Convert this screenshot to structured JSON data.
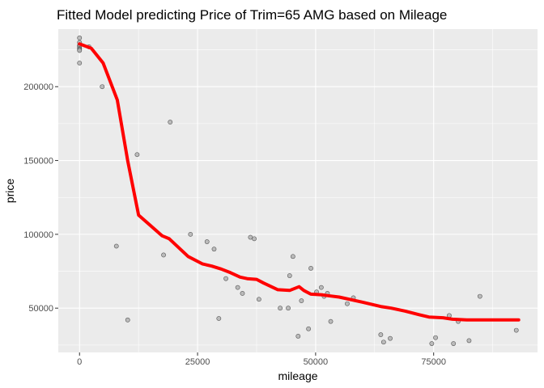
{
  "chart_data": {
    "type": "scatter",
    "title": "Fitted Model predicting Price of Trim=65 AMG based on Mileage",
    "xlabel": "mileage",
    "ylabel": "price",
    "xlim": [
      -4500,
      97000
    ],
    "ylim": [
      20000,
      239000
    ],
    "x_ticks": [
      0,
      25000,
      50000,
      75000
    ],
    "x_tick_labels": [
      "0",
      "25000",
      "50000",
      "75000"
    ],
    "y_ticks": [
      50000,
      100000,
      150000,
      200000
    ],
    "y_tick_labels": [
      "50000",
      "100000",
      "150000",
      "200000"
    ],
    "x_minor_ticks": [
      12500,
      37500,
      62500,
      87500
    ],
    "y_minor_ticks": [
      25000,
      75000,
      125000,
      175000,
      225000
    ],
    "grid": true,
    "legend": "none",
    "colors": {
      "panel_background": "#ebebeb",
      "grid_major": "#ffffff",
      "fit_line": "#ff0000",
      "point_fill": "#b3b3b3",
      "point_stroke": "#555555"
    },
    "series": [
      {
        "type": "scatter",
        "points": [
          [
            0,
            233000
          ],
          [
            0,
            230000
          ],
          [
            0,
            228000
          ],
          [
            0,
            227500
          ],
          [
            0,
            227000
          ],
          [
            0,
            226000
          ],
          [
            0,
            225500
          ],
          [
            0,
            225000
          ],
          [
            0,
            224500
          ],
          [
            0,
            216000
          ],
          [
            2000,
            227000
          ],
          [
            4800,
            200000
          ],
          [
            7800,
            92000
          ],
          [
            10200,
            42000
          ],
          [
            12200,
            154000
          ],
          [
            17800,
            86000
          ],
          [
            19200,
            176000
          ],
          [
            23500,
            100000
          ],
          [
            27000,
            95000
          ],
          [
            28500,
            90000
          ],
          [
            29500,
            43000
          ],
          [
            31000,
            70000
          ],
          [
            33500,
            64000
          ],
          [
            34500,
            60000
          ],
          [
            36200,
            98000
          ],
          [
            37000,
            97000
          ],
          [
            38000,
            56000
          ],
          [
            42500,
            50000
          ],
          [
            44200,
            50000
          ],
          [
            44500,
            72000
          ],
          [
            45200,
            85000
          ],
          [
            46300,
            31000
          ],
          [
            47000,
            55000
          ],
          [
            48500,
            36000
          ],
          [
            49000,
            77000
          ],
          [
            50200,
            61000
          ],
          [
            51200,
            64000
          ],
          [
            51800,
            58000
          ],
          [
            52500,
            60000
          ],
          [
            53200,
            41000
          ],
          [
            56700,
            53000
          ],
          [
            58000,
            57000
          ],
          [
            63800,
            32000
          ],
          [
            64400,
            27000
          ],
          [
            65800,
            29500
          ],
          [
            74600,
            26000
          ],
          [
            75400,
            30000
          ],
          [
            78300,
            45000
          ],
          [
            79200,
            26000
          ],
          [
            80200,
            41000
          ],
          [
            82500,
            28000
          ],
          [
            84800,
            58000
          ],
          [
            92500,
            35000
          ]
        ]
      },
      {
        "type": "line",
        "points": [
          [
            0,
            229000
          ],
          [
            2500,
            226000
          ],
          [
            5000,
            216000
          ],
          [
            8000,
            191000
          ],
          [
            10200,
            150000
          ],
          [
            12500,
            113000
          ],
          [
            15000,
            106000
          ],
          [
            17500,
            99000
          ],
          [
            19000,
            97000
          ],
          [
            21000,
            91000
          ],
          [
            23000,
            85000
          ],
          [
            26000,
            80000
          ],
          [
            28000,
            78500
          ],
          [
            30000,
            76500
          ],
          [
            32000,
            74000
          ],
          [
            34000,
            71000
          ],
          [
            35500,
            70000
          ],
          [
            37500,
            69500
          ],
          [
            39000,
            67000
          ],
          [
            42000,
            62500
          ],
          [
            44500,
            62000
          ],
          [
            46500,
            64500
          ],
          [
            47500,
            62000
          ],
          [
            49000,
            59500
          ],
          [
            51500,
            59000
          ],
          [
            52500,
            58500
          ],
          [
            55000,
            57500
          ],
          [
            60000,
            54000
          ],
          [
            64000,
            51000
          ],
          [
            66000,
            50000
          ],
          [
            69000,
            48000
          ],
          [
            72000,
            45500
          ],
          [
            74000,
            44000
          ],
          [
            77000,
            43500
          ],
          [
            79000,
            42500
          ],
          [
            82000,
            42000
          ],
          [
            87000,
            42000
          ],
          [
            93000,
            42000
          ]
        ]
      }
    ]
  }
}
